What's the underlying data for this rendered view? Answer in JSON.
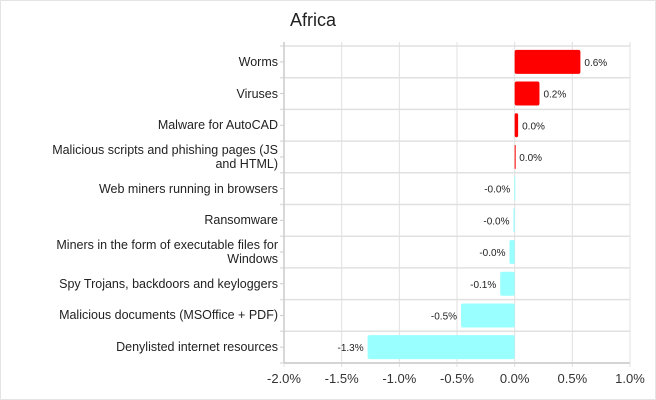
{
  "chart_data": {
    "type": "bar",
    "orientation": "horizontal",
    "title": "Africa",
    "categories": [
      "Worms",
      "Viruses",
      "Malware for AutoCAD",
      "Malicious scripts and phishing pages (JS and HTML)",
      "Web miners running in browsers",
      "Ransomware",
      "Miners in the form of executable files for Windows",
      "Spy Trojans, backdoors and keyloggers",
      "Malicious documents (MSOffice + PDF)",
      "Denylisted internet resources"
    ],
    "values": [
      0.57,
      0.215,
      0.03,
      0.005,
      -0.003,
      -0.01,
      -0.045,
      -0.125,
      -0.465,
      -1.275
    ],
    "data_labels": [
      "0.6%",
      "0.2%",
      "0.0%",
      "0.0%",
      "-0.0%",
      "-0.0%",
      "-0.0%",
      "-0.1%",
      "-0.5%",
      "-1.3%"
    ],
    "xlim": [
      -2.0,
      1.0
    ],
    "x_ticks": [
      -2.0,
      -1.5,
      -1.0,
      -0.5,
      0.0,
      0.5,
      1.0
    ],
    "x_tick_labels": [
      "-2.0%",
      "-1.5%",
      "-1.0%",
      "-0.5%",
      "0.0%",
      "0.5%",
      "1.0%"
    ],
    "xlabel": "",
    "ylabel": "",
    "grid": true,
    "colors": {
      "positive": "#ff0000",
      "negative": "#99ffff",
      "grid": "#e0e0e0"
    }
  }
}
